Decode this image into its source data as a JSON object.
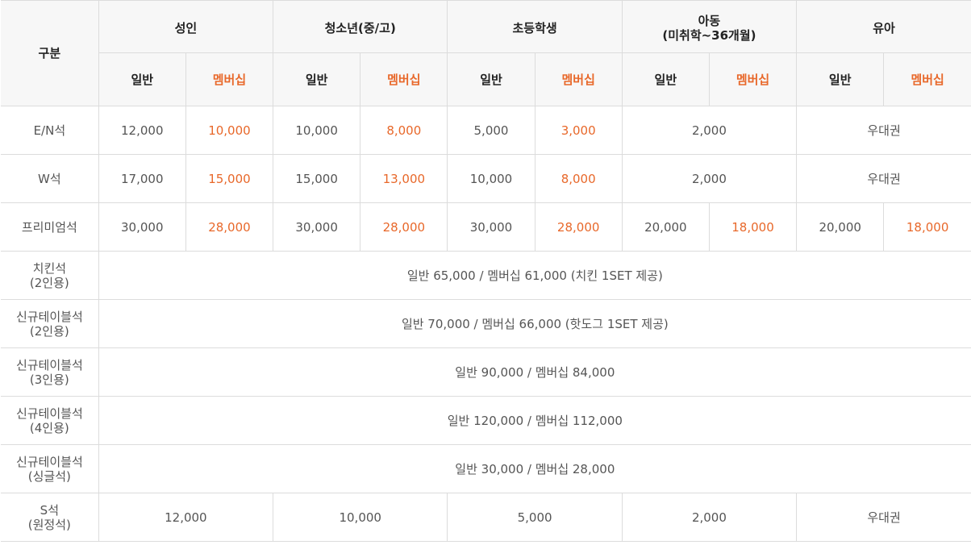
{
  "header": {
    "category_label": "구분",
    "groups": [
      {
        "title": "성인",
        "subtitle": ""
      },
      {
        "title": "청소년(중/고)",
        "subtitle": ""
      },
      {
        "title": "초등학생",
        "subtitle": ""
      },
      {
        "title": "아동",
        "subtitle": "(미취학~36개월)"
      },
      {
        "title": "유아",
        "subtitle": ""
      }
    ],
    "general_label": "일반",
    "member_label": "멤버십"
  },
  "rows": {
    "en": {
      "label": "E/N석",
      "adult_general": "12,000",
      "adult_member": "10,000",
      "youth_general": "10,000",
      "youth_member": "8,000",
      "elem_general": "5,000",
      "elem_member": "3,000",
      "child": "2,000",
      "infant": "우대권"
    },
    "w": {
      "label": "W석",
      "adult_general": "17,000",
      "adult_member": "15,000",
      "youth_general": "15,000",
      "youth_member": "13,000",
      "elem_general": "10,000",
      "elem_member": "8,000",
      "child": "2,000",
      "infant": "우대권"
    },
    "premium": {
      "label": "프리미엄석",
      "adult_general": "30,000",
      "adult_member": "28,000",
      "youth_general": "30,000",
      "youth_member": "28,000",
      "elem_general": "30,000",
      "elem_member": "28,000",
      "child_general": "20,000",
      "child_member": "18,000",
      "infant_general": "20,000",
      "infant_member": "18,000"
    },
    "chicken": {
      "label_line1": "치킨석",
      "label_line2": "(2인용)",
      "price": "일반 65,000 / 멤버십 61,000 (치킨 1SET 제공)"
    },
    "table2": {
      "label_line1": "신규테이블석",
      "label_line2": "(2인용)",
      "price": "일반 70,000 / 멤버십 66,000 (핫도그 1SET 제공)"
    },
    "table3": {
      "label_line1": "신규테이블석",
      "label_line2": "(3인용)",
      "price": "일반 90,000 / 멤버십 84,000"
    },
    "table4": {
      "label_line1": "신규테이블석",
      "label_line2": "(4인용)",
      "price": "일반 120,000 / 멤버십 112,000"
    },
    "single": {
      "label_line1": "신규테이블석",
      "label_line2": "(싱글석)",
      "price": "일반 30,000 / 멤버십 28,000"
    },
    "s": {
      "label_line1": "S석",
      "label_line2": "(원정석)",
      "adult": "12,000",
      "youth": "10,000",
      "elem": "5,000",
      "child": "2,000",
      "infant": "우대권"
    }
  },
  "colors": {
    "member_accent": "#e8682a",
    "header_bg": "#f7f7f7",
    "border": "#dcdcdc"
  }
}
